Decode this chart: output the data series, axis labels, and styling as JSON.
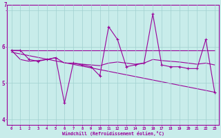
{
  "background_color": "#c8ecea",
  "line_color": "#990099",
  "grid_color": "#a0d0d0",
  "x_values": [
    0,
    1,
    2,
    3,
    4,
    5,
    6,
    7,
    8,
    9,
    10,
    11,
    12,
    13,
    14,
    15,
    16,
    17,
    18,
    19,
    20,
    21,
    22,
    23
  ],
  "y_main": [
    5.9,
    5.9,
    5.65,
    5.6,
    5.65,
    5.7,
    4.45,
    5.55,
    5.5,
    5.45,
    5.2,
    6.55,
    6.2,
    5.45,
    5.5,
    5.55,
    6.9,
    5.5,
    5.45,
    5.45,
    5.4,
    5.4,
    6.2,
    4.75
  ],
  "y_flat": [
    5.9,
    5.9,
    5.9,
    5.9,
    5.9,
    5.9,
    5.9,
    5.9,
    5.9,
    5.9,
    5.9,
    5.9,
    5.9,
    5.9,
    5.9,
    5.9,
    5.9,
    5.9,
    5.9,
    5.9,
    5.9,
    5.9,
    5.9,
    5.9
  ],
  "y_smooth": [
    5.9,
    5.65,
    5.6,
    5.62,
    5.65,
    5.7,
    5.55,
    5.55,
    5.52,
    5.5,
    5.48,
    5.55,
    5.58,
    5.55,
    5.52,
    5.55,
    5.65,
    5.62,
    5.6,
    5.58,
    5.55,
    5.52,
    5.55,
    5.5
  ],
  "ylim": [
    3.85,
    7.15
  ],
  "yticks": [
    4,
    5,
    6,
    7
  ],
  "xticks": [
    0,
    1,
    2,
    3,
    4,
    5,
    6,
    7,
    8,
    9,
    10,
    11,
    12,
    13,
    14,
    15,
    16,
    17,
    18,
    19,
    20,
    21,
    22,
    23
  ],
  "xlabel": "Windchill (Refroidissement éolien,°C)"
}
